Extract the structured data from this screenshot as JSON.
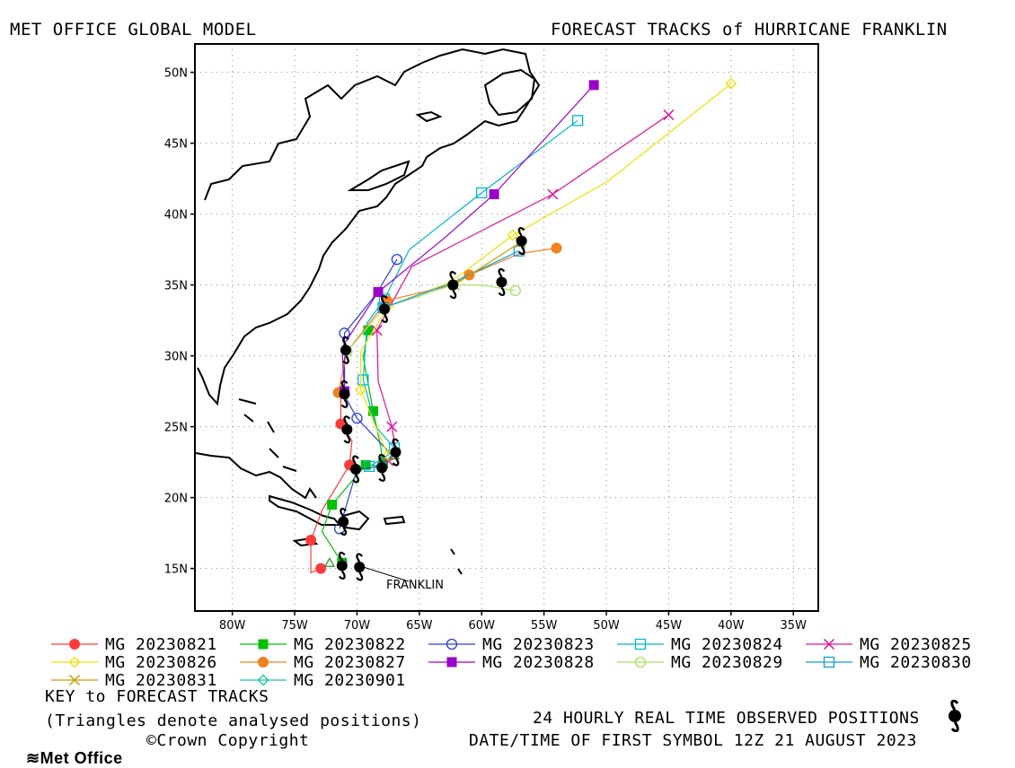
{
  "header": {
    "left_title": "MET OFFICE GLOBAL MODEL",
    "right_title": "FORECAST TRACKS of HURRICANE FRANKLIN"
  },
  "map": {
    "x_ticks": [
      "80W",
      "75W",
      "70W",
      "65W",
      "60W",
      "55W",
      "50W",
      "45W",
      "40W",
      "35W"
    ],
    "y_ticks": [
      "50N",
      "45N",
      "40N",
      "35N",
      "30N",
      "25N",
      "20N",
      "15N"
    ],
    "storm_label": "FRANKLIN"
  },
  "chart_data": {
    "type": "scatter",
    "title": "FORECAST TRACKS of HURRICANE FRANKLIN",
    "x_range_lon": [
      -83,
      -33
    ],
    "y_range_lat": [
      12,
      52
    ],
    "grid": true,
    "observed_track": {
      "name": "24 HOURLY REAL TIME OBSERVED POSITIONS",
      "points": [
        [
          -69.8,
          15.1
        ],
        [
          -71.2,
          15.2
        ],
        [
          -71.1,
          18.3
        ],
        [
          -70.1,
          22.0
        ],
        [
          -68.0,
          22.1
        ],
        [
          -66.9,
          23.2
        ],
        [
          -70.8,
          24.8
        ],
        [
          -71.0,
          27.3
        ],
        [
          -70.9,
          30.4
        ],
        [
          -67.8,
          33.3
        ],
        [
          -62.3,
          35.0
        ],
        [
          -58.4,
          35.2
        ],
        [
          -56.8,
          38.1
        ]
      ]
    },
    "series": [
      {
        "name": "MG 20230821",
        "color": "#ff3b3b",
        "marker": "filled-circle",
        "points": [
          [
            -72.9,
            15.0
          ],
          [
            -73.7,
            14.7
          ],
          [
            -73.7,
            17.0
          ],
          [
            -72.8,
            19.1
          ],
          [
            -70.6,
            22.3
          ],
          [
            -70.4,
            24.0
          ],
          [
            -71.3,
            25.2
          ],
          [
            -71.3,
            27.4
          ]
        ]
      },
      {
        "name": "MG 20230822",
        "color": "#00c000",
        "marker": "filled-square",
        "points": [
          [
            -71.2,
            15.4
          ],
          [
            -72.8,
            17.6
          ],
          [
            -72.0,
            19.5
          ],
          [
            -69.5,
            22.1
          ],
          [
            -69.3,
            22.3
          ],
          [
            -68.1,
            22.2
          ],
          [
            -67.9,
            22.4
          ],
          [
            -68.1,
            23.6
          ],
          [
            -68.7,
            26.1
          ],
          [
            -69.5,
            29.9
          ],
          [
            -69.1,
            31.8
          ]
        ]
      },
      {
        "name": "MG 20230823",
        "color": "#2a3fd6",
        "marker": "open-circle",
        "points": [
          [
            -71.4,
            17.8
          ],
          [
            -70.0,
            22.0
          ],
          [
            -68.0,
            22.2
          ],
          [
            -67.2,
            23.0
          ],
          [
            -70.0,
            25.6
          ],
          [
            -71.0,
            27.2
          ],
          [
            -71.0,
            31.6
          ],
          [
            -68.5,
            34.3
          ],
          [
            -66.8,
            36.8
          ]
        ]
      },
      {
        "name": "MG 20230824",
        "color": "#00b8c8",
        "marker": "open-square",
        "points": [
          [
            -69.0,
            22.2
          ],
          [
            -67.5,
            23.0
          ],
          [
            -67.0,
            23.5
          ],
          [
            -68.5,
            25.0
          ],
          [
            -69.5,
            28.3
          ],
          [
            -69.2,
            32.3
          ],
          [
            -67.8,
            34.0
          ],
          [
            -65.8,
            37.5
          ],
          [
            -60.0,
            41.5
          ],
          [
            -52.3,
            46.6
          ]
        ]
      },
      {
        "name": "MG 20230825",
        "color": "#e0109a",
        "marker": "x",
        "points": [
          [
            -67.5,
            22.6
          ],
          [
            -66.8,
            22.8
          ],
          [
            -67.2,
            25.0
          ],
          [
            -68.3,
            28.2
          ],
          [
            -68.4,
            31.8
          ],
          [
            -65.6,
            36.3
          ],
          [
            -54.3,
            41.4
          ],
          [
            -45.0,
            47.0
          ]
        ]
      },
      {
        "name": "MG 20230826",
        "color": "#f0e000",
        "marker": "open-diamond",
        "points": [
          [
            -67.5,
            23.0
          ],
          [
            -68.5,
            25.0
          ],
          [
            -69.7,
            27.6
          ],
          [
            -69.7,
            30.3
          ],
          [
            -67.5,
            33.5
          ],
          [
            -62.5,
            35.2
          ],
          [
            -57.5,
            38.5
          ],
          [
            -49.9,
            42.3
          ],
          [
            -40.0,
            49.2
          ]
        ]
      },
      {
        "name": "MG 20230827",
        "color": "#f08020",
        "marker": "filled-circle",
        "points": [
          [
            -71.5,
            27.4
          ],
          [
            -70.8,
            30.3
          ],
          [
            -67.6,
            33.9
          ],
          [
            -62.3,
            35.0
          ],
          [
            -61.0,
            35.7
          ],
          [
            -57.0,
            37.2
          ],
          [
            -54.0,
            37.6
          ]
        ]
      },
      {
        "name": "MG 20230828",
        "color": "#9a00cc",
        "marker": "filled-square",
        "points": [
          [
            -71.0,
            27.5
          ],
          [
            -71.2,
            30.6
          ],
          [
            -68.3,
            34.5
          ],
          [
            -63.0,
            38.3
          ],
          [
            -59.0,
            41.4
          ],
          [
            -51.0,
            49.1
          ]
        ]
      },
      {
        "name": "MG 20230829",
        "color": "#a8e060",
        "marker": "open-circle",
        "points": [
          [
            -70.8,
            30.3
          ],
          [
            -67.8,
            33.4
          ],
          [
            -62.3,
            35.0
          ],
          [
            -60.0,
            35.0
          ],
          [
            -57.3,
            34.6
          ]
        ]
      },
      {
        "name": "MG 20230830",
        "color": "#10a0d8",
        "marker": "open-square",
        "points": [
          [
            -67.9,
            33.4
          ],
          [
            -62.5,
            35.1
          ],
          [
            -57.0,
            37.4
          ]
        ]
      },
      {
        "name": "MG 20230831",
        "color": "#c8a000",
        "marker": "x",
        "points": [
          [
            -62.2,
            35.0
          ],
          [
            -56.9,
            38.0
          ]
        ]
      },
      {
        "name": "MG 20230901",
        "color": "#10c8a0",
        "marker": "open-diamond",
        "points": [
          [
            -56.8,
            38.1
          ]
        ]
      }
    ],
    "analysed_points": [
      [
        -72.2,
        15.4
      ],
      [
        -68.0,
        22.6
      ],
      [
        -67.0,
        23.0
      ]
    ]
  },
  "legend": {
    "items": [
      {
        "label": "MG 20230821",
        "color": "#ff3b3b",
        "marker": "filled-circle"
      },
      {
        "label": "MG 20230822",
        "color": "#00c000",
        "marker": "filled-square"
      },
      {
        "label": "MG 20230823",
        "color": "#2a3fd6",
        "marker": "open-circle"
      },
      {
        "label": "MG 20230824",
        "color": "#00b8c8",
        "marker": "open-square"
      },
      {
        "label": "MG 20230825",
        "color": "#e0109a",
        "marker": "x"
      },
      {
        "label": "MG 20230826",
        "color": "#f0e000",
        "marker": "open-diamond"
      },
      {
        "label": "MG 20230827",
        "color": "#f08020",
        "marker": "filled-circle"
      },
      {
        "label": "MG 20230828",
        "color": "#9a00cc",
        "marker": "filled-square"
      },
      {
        "label": "MG 20230829",
        "color": "#a8e060",
        "marker": "open-circle"
      },
      {
        "label": "MG 20230830",
        "color": "#10a0d8",
        "marker": "open-square"
      },
      {
        "label": "MG 20230831",
        "color": "#c8a000",
        "marker": "x"
      },
      {
        "label": "MG 20230901",
        "color": "#10c8a0",
        "marker": "open-diamond"
      }
    ]
  },
  "footer": {
    "key_title": "KEY to FORECAST TRACKS",
    "key_note": "(Triangles denote analysed positions)",
    "observed_label": "24 HOURLY REAL TIME OBSERVED POSITIONS",
    "datetime_label": "DATE/TIME OF FIRST SYMBOL 12Z 21 AUGUST 2023",
    "brand": "Met Office",
    "copyright": "©Crown Copyright"
  }
}
